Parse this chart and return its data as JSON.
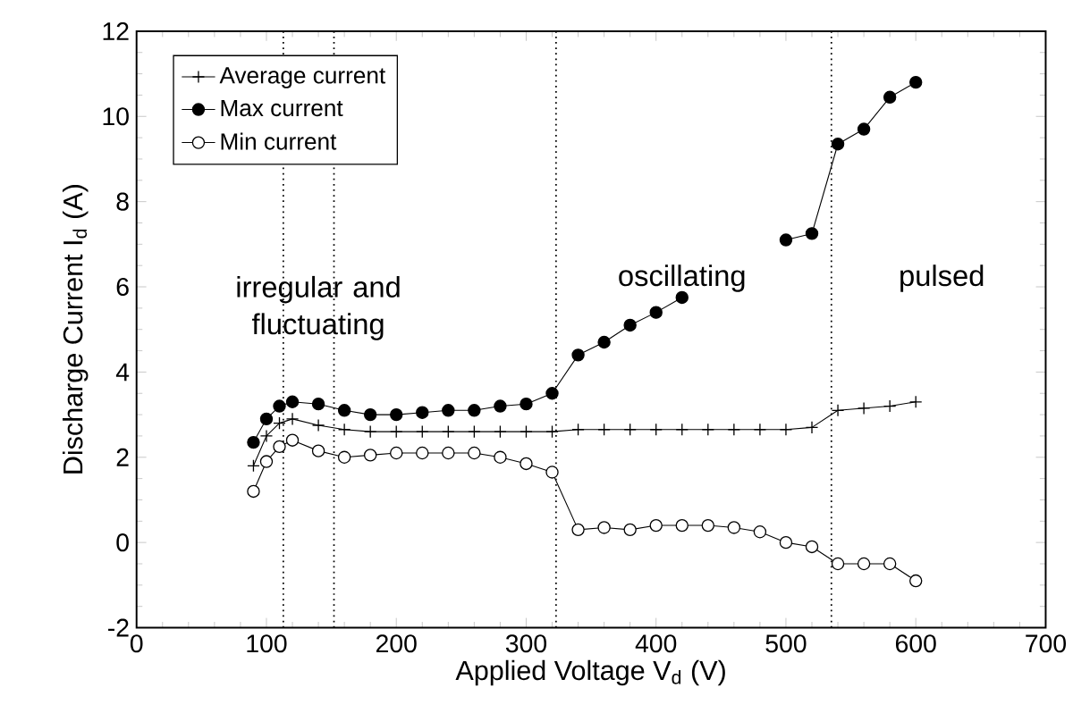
{
  "chart_data": {
    "type": "line",
    "xlabel": "Applied Voltage V$_{d}$ (V)",
    "ylabel": "Discharge Current I$_{d}$ (A)",
    "x": [
      90,
      100,
      110,
      120,
      140,
      160,
      180,
      200,
      220,
      240,
      260,
      280,
      300,
      320,
      340,
      360,
      380,
      400,
      420,
      440,
      460,
      480,
      500,
      520,
      540,
      560,
      580,
      600
    ],
    "series": [
      {
        "name": "Average current",
        "color": "#000000",
        "marker": "cross",
        "values": [
          1.8,
          2.5,
          2.8,
          2.9,
          2.75,
          2.65,
          2.6,
          2.6,
          2.6,
          2.6,
          2.6,
          2.6,
          2.6,
          2.6,
          2.65,
          2.65,
          2.65,
          2.65,
          2.65,
          2.65,
          2.65,
          2.65,
          2.65,
          2.7,
          3.1,
          3.15,
          3.2,
          3.3
        ]
      },
      {
        "name": "Max current",
        "color": "#000000",
        "marker": "circle",
        "values": [
          2.35,
          2.9,
          3.2,
          3.3,
          3.25,
          3.1,
          3.0,
          3.0,
          3.05,
          3.1,
          3.1,
          3.2,
          3.25,
          3.5,
          4.4,
          4.7,
          5.1,
          5.4,
          5.75,
          null,
          null,
          null,
          7.1,
          7.25,
          9.35,
          9.7,
          10.45,
          10.8
        ]
      },
      {
        "name": "Min current",
        "color": "#000000",
        "marker": "circle",
        "values": [
          1.2,
          1.9,
          2.25,
          2.4,
          2.15,
          2.0,
          2.05,
          2.1,
          2.1,
          2.1,
          2.1,
          2.0,
          1.85,
          1.65,
          0.3,
          0.35,
          0.3,
          0.4,
          0.4,
          0.4,
          0.35,
          0.25,
          0.0,
          -0.1,
          -0.5,
          -0.5,
          -0.5,
          -0.9
        ]
      }
    ],
    "xlim": [
      0,
      700
    ],
    "xticks": [
      0,
      100,
      200,
      300,
      400,
      500,
      600,
      700
    ],
    "ylim": [
      -2,
      12
    ],
    "yticks": [
      -2,
      0,
      2,
      4,
      6,
      8,
      10,
      12
    ],
    "ref_lines": [
      {
        "axis": "x",
        "value": 113,
        "line_style": "dotted"
      },
      {
        "axis": "x",
        "value": 152,
        "line_style": "dotted"
      },
      {
        "axis": "x",
        "value": 323,
        "line_style": "dotted"
      },
      {
        "axis": "x",
        "value": 535,
        "line_style": "dotted"
      }
    ],
    "annotations": [
      "irregular and fluctuating",
      "oscillating",
      "pulsed"
    ],
    "legend": "top left",
    "line_style": "solid",
    "grid": false
  }
}
